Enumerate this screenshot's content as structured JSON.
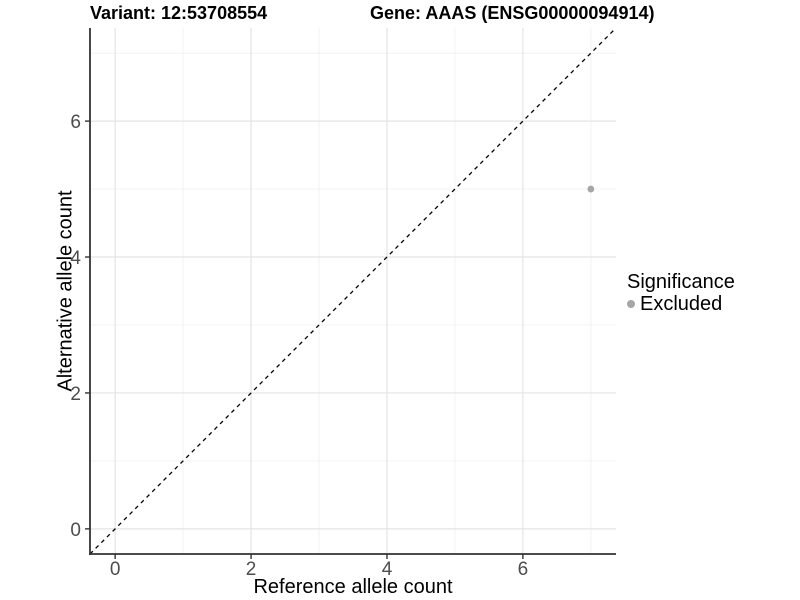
{
  "titles": {
    "variant": "Variant: 12:53708554",
    "gene": "Gene: AAAS (ENSG00000094914)"
  },
  "chart_data": {
    "type": "scatter",
    "title": "Variant: 12:53708554  Gene: AAAS (ENSG00000094914)",
    "xlabel": "Reference allele count",
    "ylabel": "Alternative allele count",
    "xlim": [
      -0.37,
      7.37
    ],
    "ylim": [
      -0.37,
      7.37
    ],
    "x_ticks": [
      0,
      2,
      4,
      6
    ],
    "y_ticks": [
      0,
      2,
      4,
      6
    ],
    "x_minor_ticks": [
      1,
      3,
      5,
      7
    ],
    "y_minor_ticks": [
      1,
      3,
      5,
      7
    ],
    "grid": true,
    "series": [
      {
        "name": "Excluded",
        "color": "#a6a6a6",
        "points": [
          {
            "x": 7,
            "y": 5
          }
        ]
      }
    ],
    "reference_line": {
      "slope": 1,
      "intercept": 0,
      "style": "dashed",
      "color": "#000000"
    },
    "legend": {
      "title": "Significance",
      "position": "right",
      "items": [
        {
          "label": "Excluded",
          "color": "#a6a6a6"
        }
      ]
    }
  },
  "colors": {
    "background": "#ffffff",
    "grid_major": "#e4e4e4",
    "grid_minor": "#f1f1f1",
    "axis_line": "#333333",
    "tick_label": "#4d4d4d",
    "point": "#a6a6a6",
    "dashed_line": "#000000"
  }
}
